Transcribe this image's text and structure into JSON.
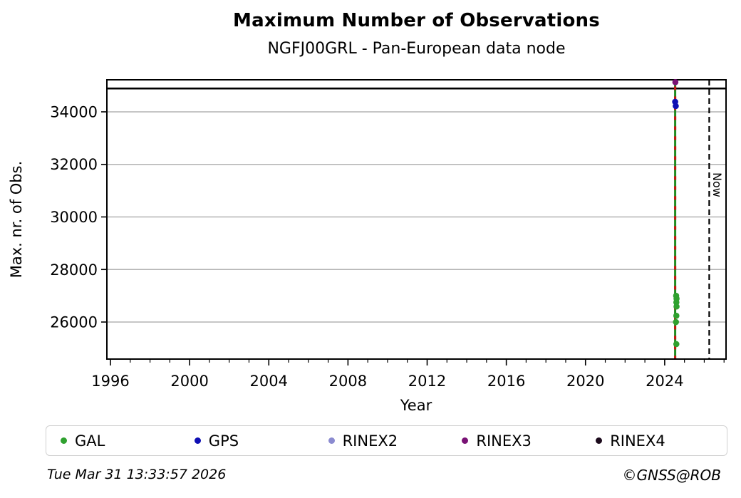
{
  "title": "Maximum Number of Observations",
  "subtitle": "NGFJ00GRL - Pan-European data node",
  "footer": {
    "timestamp": "Tue Mar 31 13:33:57 2026",
    "credit": "©GNSS@ROB"
  },
  "legend": {
    "items": [
      {
        "label": "GAL",
        "color": "#2fa12f"
      },
      {
        "label": "GPS",
        "color": "#0f0fb4"
      },
      {
        "label": "RINEX2",
        "color": "#8b8bd0"
      },
      {
        "label": "RINEX3",
        "color": "#791275"
      },
      {
        "label": "RINEX4",
        "color": "#1c0a1c"
      }
    ]
  },
  "chart_data": {
    "type": "scatter",
    "title": "Maximum Number of Observations",
    "subtitle": "NGFJ00GRL - Pan-European data node",
    "xlabel": "Year",
    "ylabel": "Max. nr. of Obs.",
    "xlim": [
      1995.82,
      2027.1
    ],
    "ylim": [
      24590,
      35220
    ],
    "xticks": [
      1996,
      2000,
      2004,
      2008,
      2012,
      2016,
      2020,
      2024
    ],
    "x_minor_tick_step_years": 1,
    "yticks": [
      26000,
      28000,
      30000,
      32000,
      34000
    ],
    "grid": "horizontal gray gridlines at y major ticks only",
    "grid_color": "#b3b3b3",
    "reference_line": {
      "y": 34890,
      "color": "#000000",
      "style": "solid"
    },
    "now_line": {
      "x": 2026.25,
      "label": "Now",
      "style": "dashed",
      "color": "#000000"
    },
    "dense_band": {
      "x": 2024.53,
      "ymin": 24620,
      "ymax": 35130,
      "note": "daily values overplotted into a vertical line: green (GAL) with red segments interleaved",
      "colors": [
        "#1f8b1f",
        "#cc1111"
      ]
    },
    "series": [
      {
        "name": "GAL",
        "color": "#2fa12f",
        "points": [
          [
            2024.58,
            27000
          ],
          [
            2024.6,
            26890
          ],
          [
            2024.59,
            26750
          ],
          [
            2024.6,
            26590
          ],
          [
            2024.59,
            26240
          ],
          [
            2024.57,
            26000
          ],
          [
            2024.59,
            25160
          ]
        ]
      },
      {
        "name": "GPS",
        "color": "#0f0fb4",
        "points": [
          [
            2024.53,
            34380
          ],
          [
            2024.56,
            34220
          ]
        ]
      },
      {
        "name": "RINEX2",
        "color": "#8b8bd0",
        "points": []
      },
      {
        "name": "RINEX3",
        "color": "#791275",
        "points": [
          [
            2024.54,
            35130
          ]
        ]
      },
      {
        "name": "RINEX4",
        "color": "#1c0a1c",
        "points": []
      }
    ],
    "legend_position": "bottom"
  }
}
